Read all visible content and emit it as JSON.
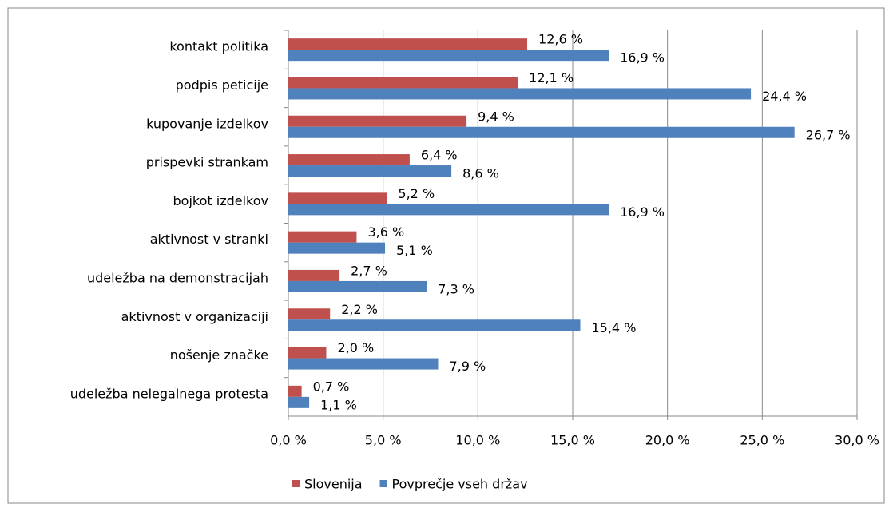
{
  "chart_data": {
    "type": "hbar",
    "categories": [
      "kontakt politika",
      "podpis peticije",
      "kupovanje izdelkov",
      "prispevki strankam",
      "bojkot izdelkov",
      "aktivnost v stranki",
      "udeležba na demonstracijah",
      "aktivnost v organizaciji",
      "nošenje značke",
      "udeležba nelegalnega protesta"
    ],
    "series": [
      {
        "name": "Slovenija",
        "color": "#c0504d",
        "values": [
          12.6,
          12.1,
          9.4,
          6.4,
          5.2,
          3.6,
          2.7,
          2.2,
          2.0,
          0.7
        ],
        "value_labels": [
          "12,6 %",
          "12,1 %",
          "9,4 %",
          "6,4 %",
          "5,2 %",
          "3,6 %",
          "2,7 %",
          "2,2 %",
          "2,0 %",
          "0,7 %"
        ]
      },
      {
        "name": "Povprečje vseh držav",
        "color": "#4f81bd",
        "values": [
          16.9,
          24.4,
          26.7,
          8.6,
          16.9,
          5.1,
          7.3,
          15.4,
          7.9,
          1.1
        ],
        "value_labels": [
          "16,9 %",
          "24,4 %",
          "26,7 %",
          "8,6 %",
          "16,9 %",
          "5,1 %",
          "7,3 %",
          "15,4 %",
          "7,9 %",
          "1,1 %"
        ]
      }
    ],
    "xlim": [
      0,
      30
    ],
    "xticks": [
      {
        "value": 0,
        "label": "0,0 %"
      },
      {
        "value": 5,
        "label": "5,0 %"
      },
      {
        "value": 10,
        "label": "10,0 %"
      },
      {
        "value": 15,
        "label": "15,0 %"
      },
      {
        "value": 20,
        "label": "20,0 %"
      },
      {
        "value": 25,
        "label": "25,0 %"
      },
      {
        "value": 30,
        "label": "30,0 %"
      }
    ],
    "grid": true,
    "legend": "bottom"
  }
}
